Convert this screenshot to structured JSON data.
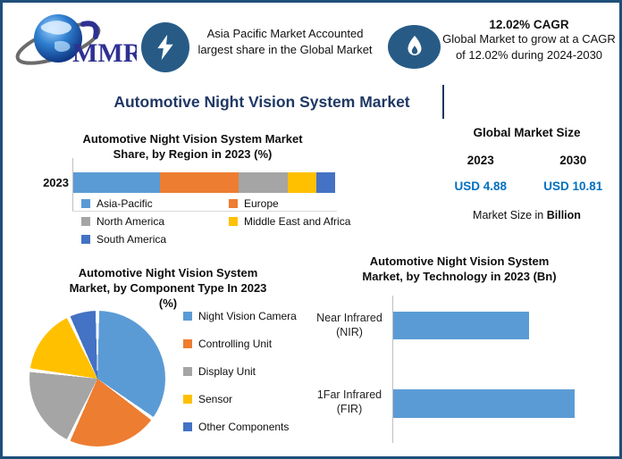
{
  "colors": {
    "border_navy": "#1F4E79",
    "title_navy": "#1F3864",
    "value_blue": "#0070C0",
    "icon_circle_blue": "#275B86",
    "logo_blue": "#2E3192",
    "series_blue": "#5B9BD5",
    "series_orange": "#ED7D31",
    "series_gray": "#A5A5A5",
    "series_yellow": "#FFC000",
    "series_darkblue": "#4472C4"
  },
  "header": {
    "logo_text": "MMR",
    "highlight_share": {
      "text": "Asia Pacific Market Accounted largest share in the Global Market"
    },
    "highlight_cagr": {
      "title": "12.02% CAGR",
      "text": "Global Market to grow at a CAGR of 12.02% during 2024-2030"
    }
  },
  "main_title": "Automotive Night Vision System Market",
  "region_chart": {
    "title_line1": "Automotive Night Vision System Market",
    "title_line2": "Share, by Region in 2023 (%)",
    "year_label": "2023"
  },
  "market_size": {
    "title": "Global Market Size",
    "year_2023": "2023",
    "year_2030": "2030",
    "value_2023": "USD 4.88",
    "value_2030": "USD 10.81",
    "note_prefix": "Market Size in",
    "note_bold": "Billion"
  },
  "component_chart": {
    "title_line1": "Automotive Night Vision System",
    "title_line2": "Market, by Component Type In 2023",
    "title_line3": "(%)"
  },
  "technology_chart": {
    "title_line1": "Automotive Night Vision System",
    "title_line2": "Market, by Technology in 2023 (Bn)",
    "bars": [
      {
        "label_line1": "Near Infrared",
        "label_line2": "(NIR)"
      },
      {
        "label_line1": "1Far Infrared",
        "label_line2": "(FIR)"
      }
    ]
  },
  "chart_data": [
    {
      "type": "bar",
      "orientation": "horizontal_stacked",
      "title": "Automotive Night Vision System Market Share, by Region in 2023 (%)",
      "categories": [
        "2023"
      ],
      "unit": "%",
      "series": [
        {
          "name": "Asia-Pacific",
          "value": 33,
          "color": "#5B9BD5"
        },
        {
          "name": "Europe",
          "value": 30,
          "color": "#ED7D31"
        },
        {
          "name": "North America",
          "value": 19,
          "color": "#A5A5A5"
        },
        {
          "name": "Middle East and Africa",
          "value": 11,
          "color": "#FFC000"
        },
        {
          "name": "South America",
          "value": 7,
          "color": "#4472C4"
        }
      ],
      "legend_position": "bottom"
    },
    {
      "type": "pie",
      "title": "Automotive Night Vision System Market, by Component Type In 2023 (%)",
      "unit": "%",
      "slices": [
        {
          "name": "Night Vision Camera",
          "value": 35,
          "color": "#5B9BD5"
        },
        {
          "name": "Controlling Unit",
          "value": 22,
          "color": "#ED7D31"
        },
        {
          "name": "Display Unit",
          "value": 20,
          "color": "#A5A5A5"
        },
        {
          "name": "Sensor",
          "value": 16,
          "color": "#FFC000"
        },
        {
          "name": "Other Components",
          "value": 7,
          "color": "#4472C4"
        }
      ],
      "legend_position": "right"
    },
    {
      "type": "bar",
      "orientation": "horizontal",
      "title": "Automotive Night Vision System Market, by Technology in 2023 (Bn)",
      "categories": [
        "Near Infrared (NIR)",
        "1Far Infrared (FIR)"
      ],
      "values": [
        2.1,
        2.8
      ],
      "unit": "Bn",
      "bar_color": "#5B9BD5",
      "grid": false
    }
  ]
}
